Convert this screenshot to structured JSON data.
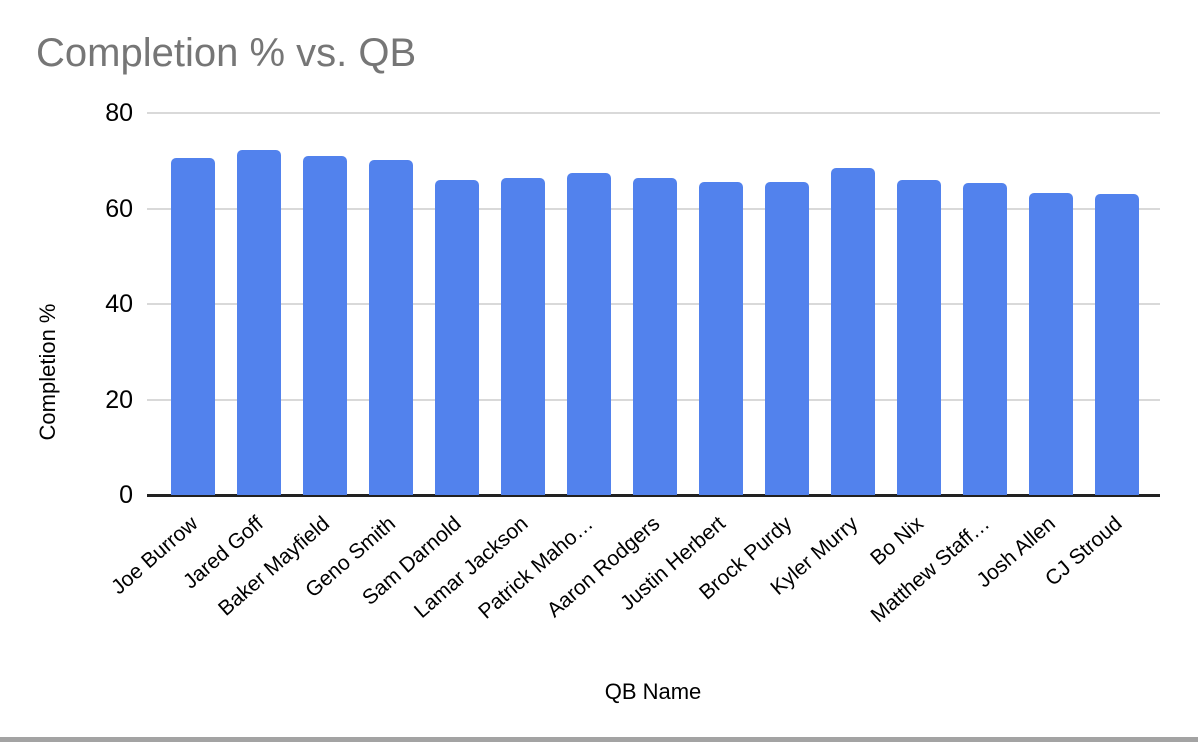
{
  "chart_data": {
    "type": "bar",
    "title": "Completion % vs. QB",
    "xlabel": "QB Name",
    "ylabel": "Completion %",
    "categories": [
      "Joe Burrow",
      "Jared Goff",
      "Baker Mayfield",
      "Geno Smith",
      "Sam Darnold",
      "Lamar Jackson",
      "Patrick Maho…",
      "Aaron Rodgers",
      "Justin Herbert",
      "Brock Purdy",
      "Kyler Murry",
      "Bo Nix",
      "Matthew Staff…",
      "Josh Allen",
      "CJ Stroud"
    ],
    "values": [
      70.5,
      72.2,
      71.0,
      70.1,
      66.0,
      66.3,
      67.5,
      66.3,
      65.6,
      65.6,
      68.4,
      66.0,
      65.4,
      63.3,
      63.0
    ],
    "ylim": [
      0,
      80
    ],
    "y_ticks": [
      0,
      20,
      40,
      60,
      80
    ],
    "grid": true,
    "legend": "none",
    "colors": {
      "bar": "#5282ed",
      "title_text": "#767676",
      "axis_text": "#000000",
      "gridline": "#d9d9d9",
      "baseline": "#212121",
      "bottom_bar": "#a3a3a3"
    }
  }
}
